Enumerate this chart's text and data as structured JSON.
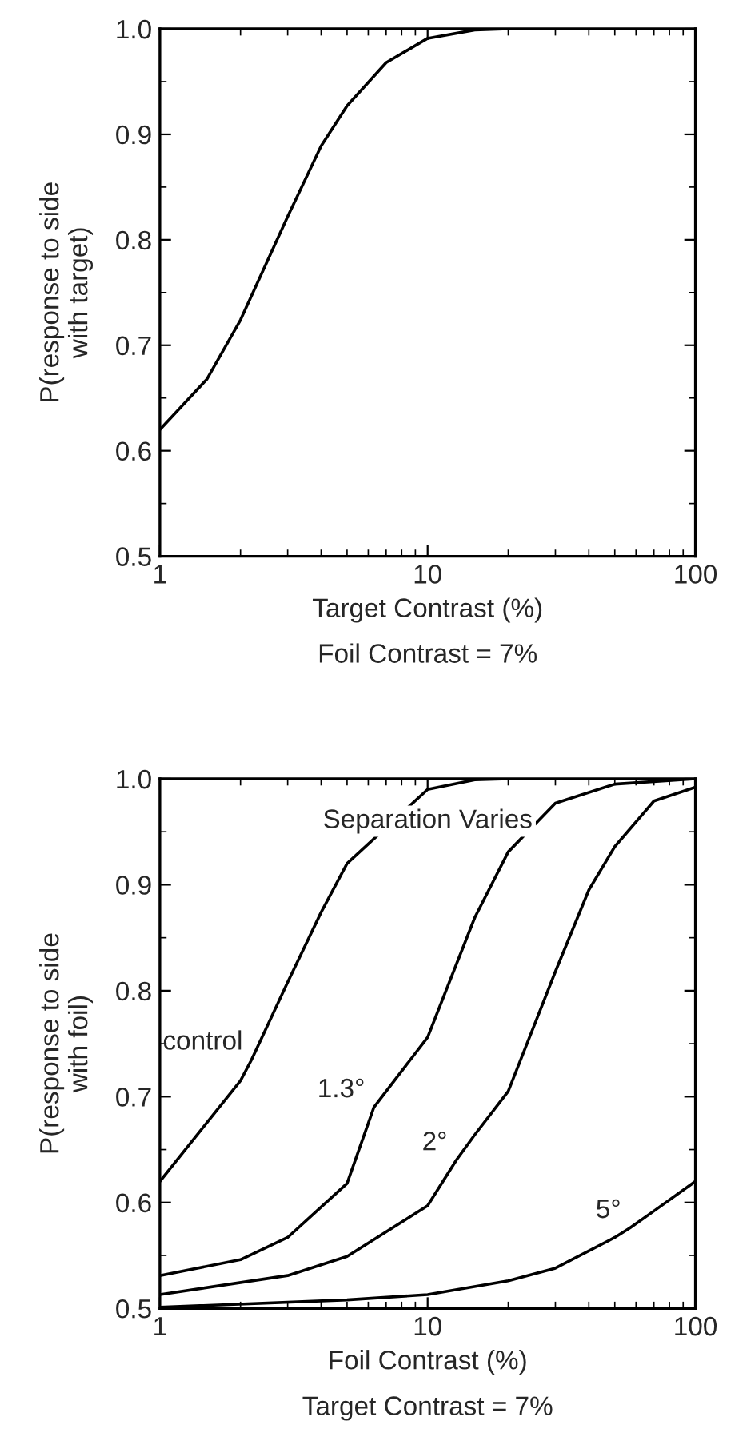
{
  "chart_data": [
    {
      "type": "line",
      "xlabel": "Target Contrast (%)",
      "ylabel": "P(response to side\nwith target)",
      "annotations": [
        "Foil Contrast = 7%"
      ],
      "log": "x",
      "xlim": [
        1,
        100
      ],
      "xticks": [
        1,
        10,
        100
      ],
      "ylim": [
        0.5,
        1.0
      ],
      "yticks": [
        {
          "value": 0.5,
          "label": "0.5"
        },
        {
          "value": 0.6,
          "label": "0.6"
        },
        {
          "value": 0.7,
          "label": "0.7"
        },
        {
          "value": 0.8,
          "label": "0.8"
        },
        {
          "value": 0.9,
          "label": "0.9"
        },
        {
          "value": 1.0,
          "label": "1.0"
        }
      ],
      "grid": false,
      "series": [
        {
          "color": "#000000",
          "x": [
            1,
            1.5,
            2,
            3,
            4,
            5,
            7,
            10,
            15,
            20,
            100
          ],
          "values": [
            0.62,
            0.668,
            0.724,
            0.822,
            0.889,
            0.927,
            0.968,
            0.991,
            0.999,
            1.0,
            1.0
          ]
        }
      ]
    },
    {
      "type": "line",
      "xlabel": "Foil Contrast (%)",
      "ylabel": "P(response to side\nwith foil)",
      "title": "Separation Varies",
      "annotations": [
        {
          "text": "control",
          "x": 2.2,
          "y": 0.735
        },
        {
          "text": "1.3°",
          "x": 6.3,
          "y": 0.69
        },
        {
          "text": "2°",
          "x": 12.8,
          "y": 0.64
        },
        {
          "text": "5°",
          "x": 57,
          "y": 0.576
        },
        "Target Contrast = 7%"
      ],
      "log": "x",
      "xlim": [
        1,
        100
      ],
      "xticks": [
        1,
        10,
        100
      ],
      "ylim": [
        0.5,
        1.0
      ],
      "yticks": [
        {
          "value": 0.5,
          "label": "0.5"
        },
        {
          "value": 0.6,
          "label": "0.6"
        },
        {
          "value": 0.7,
          "label": "0.7"
        },
        {
          "value": 0.8,
          "label": "0.8"
        },
        {
          "value": 0.9,
          "label": "0.9"
        },
        {
          "value": 1.0,
          "label": "1.0"
        }
      ],
      "grid": false,
      "series": [
        {
          "color": "#000000",
          "x": [
            1,
            2,
            2.2,
            3,
            4,
            5,
            10,
            15,
            20,
            100
          ],
          "values": [
            0.62,
            0.715,
            0.735,
            0.808,
            0.874,
            0.92,
            0.99,
            0.999,
            1.0,
            1.0
          ]
        },
        {
          "color": "#000000",
          "x": [
            1,
            2,
            3,
            5,
            6.3,
            10,
            15,
            20,
            30,
            50,
            100
          ],
          "values": [
            0.531,
            0.546,
            0.567,
            0.618,
            0.69,
            0.756,
            0.869,
            0.931,
            0.977,
            0.995,
            1.0
          ]
        },
        {
          "color": "#000000",
          "x": [
            1,
            3,
            5,
            10,
            12.8,
            15,
            20,
            30,
            40,
            50,
            70,
            100
          ],
          "values": [
            0.513,
            0.531,
            0.549,
            0.597,
            0.64,
            0.664,
            0.705,
            0.818,
            0.895,
            0.936,
            0.979,
            0.992
          ]
        },
        {
          "color": "#000000",
          "x": [
            1,
            5,
            10,
            20,
            30,
            50,
            57,
            70,
            100
          ],
          "values": [
            0.501,
            0.508,
            0.513,
            0.526,
            0.538,
            0.567,
            0.576,
            0.592,
            0.62
          ]
        }
      ]
    }
  ]
}
